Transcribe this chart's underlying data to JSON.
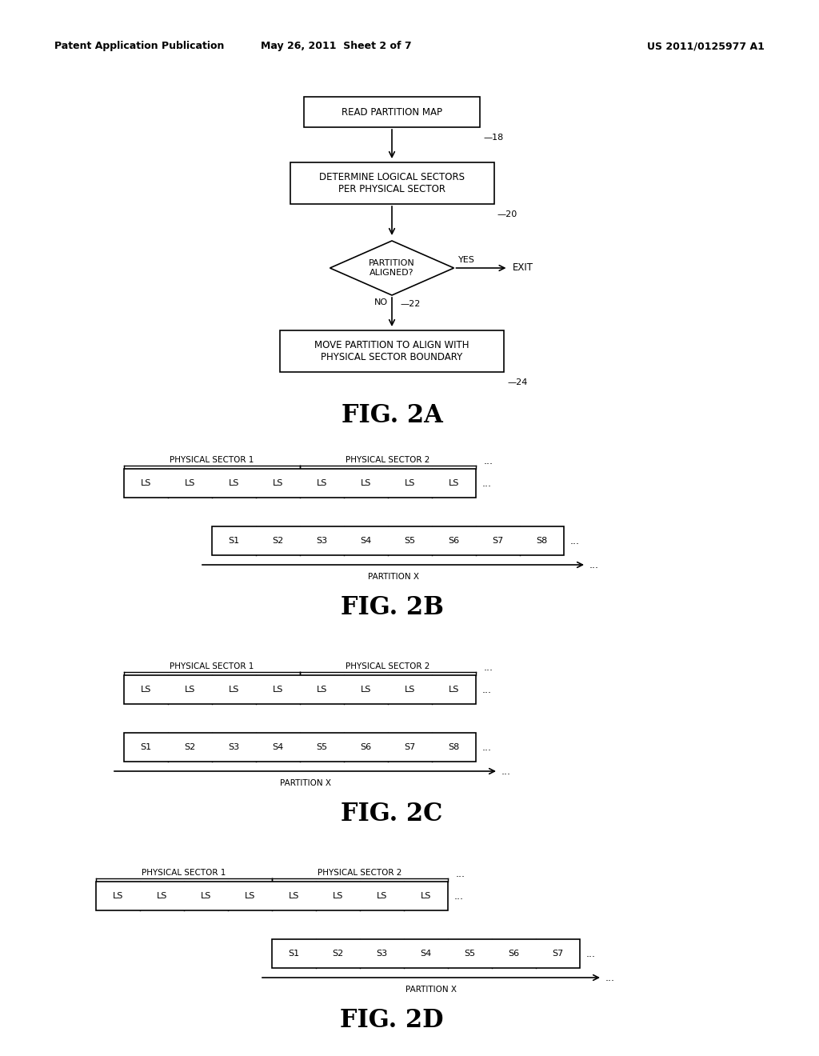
{
  "bg_color": "#ffffff",
  "header_left": "Patent Application Publication",
  "header_mid": "May 26, 2011  Sheet 2 of 7",
  "header_right": "US 2011/0125977 A1",
  "fig2a_label": "FIG. 2A",
  "fig2b_label": "FIG. 2B",
  "fig2c_label": "FIG. 2C",
  "fig2d_label": "FIG. 2D",
  "box1_text": "READ PARTITION MAP",
  "box2_text": "DETERMINE LOGICAL SECTORS\nPER PHYSICAL SECTOR",
  "diamond_text": "PARTITION\nALIGNED?",
  "yes_label": "YES",
  "no_label": "NO",
  "exit_label": "EXIT",
  "box3_text": "MOVE PARTITION TO ALIGN WITH\nPHYSICAL SECTOR BOUNDARY",
  "ref18": "—18",
  "ref20": "—20",
  "ref22": "—22",
  "ref24": "—24",
  "phys_sector1": "PHYSICAL SECTOR 1",
  "phys_sector2": "PHYSICAL SECTOR 2",
  "partition_x": "PARTITION X",
  "ls_labels": [
    "LS",
    "LS",
    "LS",
    "LS",
    "LS",
    "LS",
    "LS",
    "LS"
  ],
  "fig2b_s_labels": [
    "S1",
    "S2",
    "S3",
    "S4",
    "S5",
    "S6",
    "S7",
    "S8"
  ],
  "fig2c_s_labels": [
    "S1",
    "S2",
    "S3",
    "S4",
    "S5",
    "S6",
    "S7",
    "S8"
  ],
  "fig2d_ls_labels": [
    "LS",
    "LS",
    "LS",
    "LS",
    "LS",
    "LS",
    "LS",
    "LS"
  ],
  "fig2d_s_labels": [
    "S1",
    "S2",
    "S3",
    "S4",
    "S5",
    "S6",
    "S7"
  ],
  "dots": "..."
}
